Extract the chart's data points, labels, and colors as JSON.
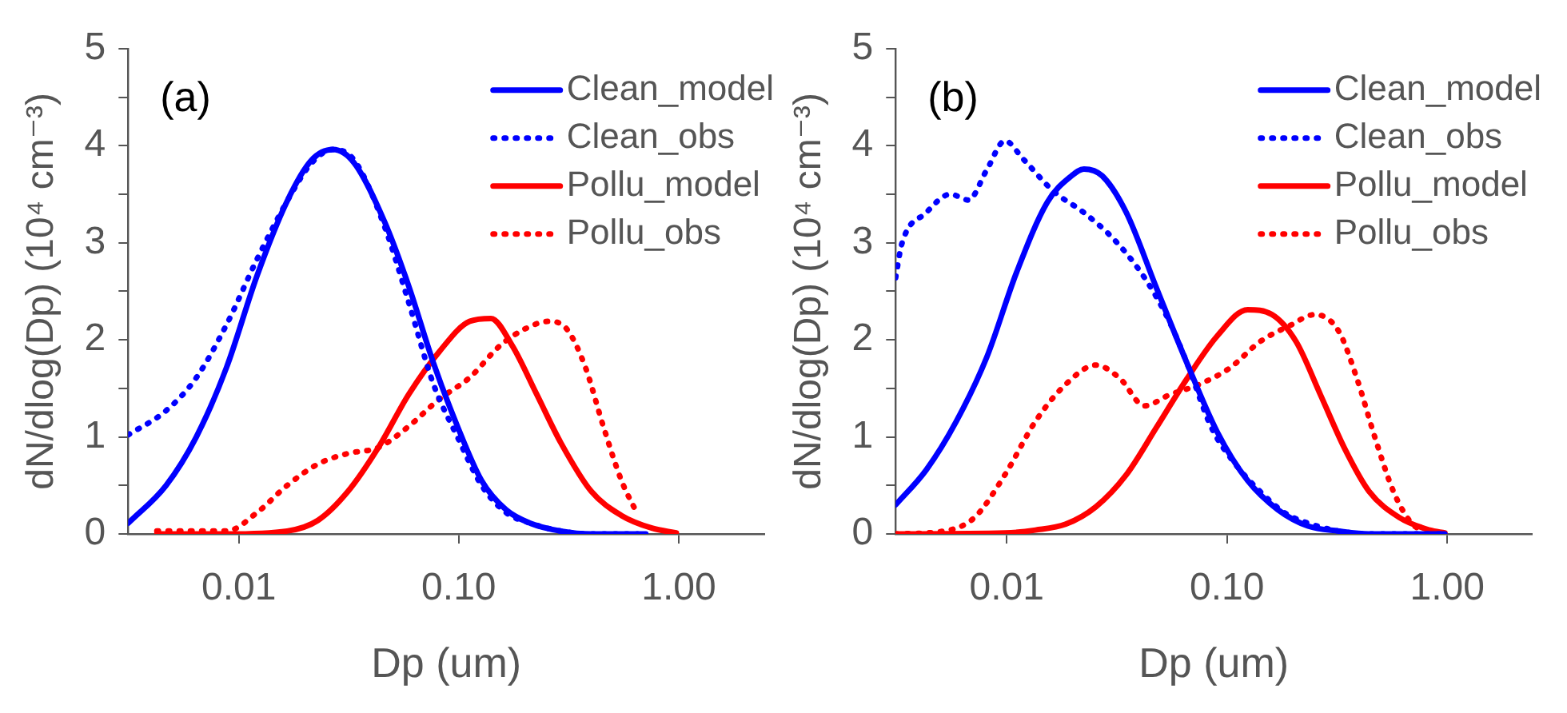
{
  "chart_data": [
    {
      "type": "line",
      "xlabel": "Dp (um)",
      "ylabel": "dN/dlog(Dp) (10⁴ cm⁻³)",
      "annotations": [
        "(a)"
      ],
      "log": "x",
      "grid": false,
      "legend": "top right",
      "marker": "none",
      "xlim": [
        0.00314,
        2.45
      ],
      "xticks": [
        {
          "value": 0.01,
          "label": "0.01"
        },
        {
          "value": 0.1,
          "label": "0.10"
        },
        {
          "value": 1,
          "label": "1.00"
        }
      ],
      "ylim": [
        0,
        5
      ],
      "yticks": [
        0,
        {
          "value": 0.5,
          "label": null
        },
        1,
        {
          "value": 1.5,
          "label": null
        },
        2,
        {
          "value": 2.5,
          "label": null
        },
        3,
        {
          "value": 3.5,
          "label": null
        },
        4,
        {
          "value": 4.5,
          "label": null
        },
        5
      ],
      "series": [
        {
          "name": "Clean_model",
          "color": "#0000ff",
          "line_style": "solid",
          "x": [
            0.00314,
            0.00467,
            0.00641,
            0.00881,
            0.0121,
            0.0166,
            0.0214,
            0.0268,
            0.0335,
            0.0461,
            0.0593,
            0.0765,
            0.0986,
            0.127,
            0.164,
            0.212,
            0.291,
            0.4,
            0.709
          ],
          "values": [
            0.11,
            0.5,
            1.0,
            1.72,
            2.66,
            3.43,
            3.85,
            3.96,
            3.82,
            3.21,
            2.55,
            1.77,
            1.11,
            0.55,
            0.25,
            0.11,
            0.03,
            0,
            0
          ]
        },
        {
          "name": "Clean_obs",
          "color": "#0000ff",
          "line_style": "dotted",
          "x": [
            0.00314,
            0.00467,
            0.00641,
            0.00881,
            0.0121,
            0.0166,
            0.0214,
            0.0268,
            0.0335,
            0.0461,
            0.0593,
            0.0765,
            0.0986,
            0.127,
            0.164,
            0.212,
            0.291,
            0.4,
            0.65
          ],
          "values": [
            1.02,
            1.27,
            1.61,
            2.16,
            2.83,
            3.43,
            3.82,
            3.96,
            3.85,
            3.16,
            2.38,
            1.55,
            1.0,
            0.5,
            0.22,
            0.11,
            0.03,
            0,
            0
          ]
        },
        {
          "name": "Pollu_model",
          "color": "#ff0000",
          "line_style": "solid",
          "x": [
            0.00424,
            0.00881,
            0.0166,
            0.0229,
            0.0314,
            0.0431,
            0.0593,
            0.0817,
            0.112,
            0.14,
            0.175,
            0.226,
            0.291,
            0.4,
            0.549,
            0.755,
            0.975
          ],
          "values": [
            0,
            0,
            0.03,
            0.14,
            0.44,
            0.89,
            1.44,
            1.88,
            2.19,
            2.22,
            1.94,
            1.44,
            0.94,
            0.44,
            0.19,
            0.06,
            0.01
          ]
        },
        {
          "name": "Pollu_obs",
          "color": "#ff0000",
          "line_style": "dotted",
          "x": [
            0.00424,
            0.00881,
            0.0121,
            0.0166,
            0.0229,
            0.0314,
            0.0431,
            0.0593,
            0.0817,
            0.112,
            0.154,
            0.199,
            0.256,
            0.31,
            0.376,
            0.454,
            0.549,
            0.644
          ],
          "values": [
            0.03,
            0.03,
            0.22,
            0.5,
            0.72,
            0.83,
            0.89,
            1.11,
            1.39,
            1.61,
            1.94,
            2.11,
            2.19,
            2.11,
            1.72,
            1.11,
            0.55,
            0.22
          ]
        }
      ]
    },
    {
      "type": "line",
      "xlabel": "Dp (um)",
      "ylabel": "dN/dlog(Dp) (10⁴ cm⁻³)",
      "annotations": [
        "(b)"
      ],
      "log": "x",
      "grid": false,
      "legend": "top right",
      "marker": "none",
      "xlim": [
        0.00313,
        2.42
      ],
      "xticks": [
        {
          "value": 0.01,
          "label": "0.01"
        },
        {
          "value": 0.1,
          "label": "0.10"
        },
        {
          "value": 1,
          "label": "1.00"
        }
      ],
      "ylim": [
        0,
        5
      ],
      "yticks": [
        0,
        {
          "value": 0.5,
          "label": null
        },
        1,
        {
          "value": 1.5,
          "label": null
        },
        2,
        {
          "value": 2.5,
          "label": null
        },
        3,
        {
          "value": 3.5,
          "label": null
        },
        4,
        {
          "value": 4.5,
          "label": null
        },
        5
      ],
      "series": [
        {
          "name": "Clean_model",
          "color": "#0000ff",
          "line_style": "solid",
          "x": [
            0.00313,
            0.00431,
            0.0059,
            0.00811,
            0.0111,
            0.0153,
            0.0197,
            0.0224,
            0.0271,
            0.0349,
            0.0479,
            0.0658,
            0.0903,
            0.124,
            0.17,
            0.234,
            0.321,
            0.441,
            0.975
          ],
          "values": [
            0.3,
            0.66,
            1.16,
            1.82,
            2.7,
            3.42,
            3.69,
            3.76,
            3.69,
            3.31,
            2.53,
            1.76,
            1.05,
            0.55,
            0.25,
            0.08,
            0.03,
            0,
            0
          ]
        },
        {
          "name": "Clean_obs",
          "color": "#0000ff",
          "line_style": "dotted",
          "x": [
            0.00313,
            0.00333,
            0.00431,
            0.00555,
            0.0067,
            0.00811,
            0.00981,
            0.0119,
            0.0163,
            0.0224,
            0.0308,
            0.0422,
            0.0544,
            0.0658,
            0.0848,
            0.109,
            0.141,
            0.182,
            0.234,
            0.321,
            0.441,
            0.944
          ],
          "values": [
            2.64,
            2.98,
            3.31,
            3.5,
            3.44,
            3.75,
            4.05,
            3.86,
            3.53,
            3.31,
            3.03,
            2.64,
            2.2,
            1.76,
            1.1,
            0.72,
            0.44,
            0.22,
            0.11,
            0.03,
            0,
            0
          ]
        },
        {
          "name": "Pollu_model",
          "color": "#ff0000",
          "line_style": "solid",
          "x": [
            0.00313,
            0.00981,
            0.0135,
            0.0185,
            0.0254,
            0.0349,
            0.0479,
            0.0658,
            0.0903,
            0.124,
            0.16,
            0.206,
            0.266,
            0.342,
            0.441,
            0.605,
            0.832,
            0.975
          ],
          "values": [
            0,
            0.01,
            0.04,
            0.1,
            0.28,
            0.61,
            1.1,
            1.6,
            2.04,
            2.31,
            2.26,
            1.98,
            1.43,
            0.88,
            0.44,
            0.17,
            0.04,
            0.01
          ]
        },
        {
          "name": "Pollu_obs",
          "color": "#ff0000",
          "line_style": "dotted",
          "x": [
            0.00313,
            0.0052,
            0.00714,
            0.00981,
            0.0135,
            0.0185,
            0.0254,
            0.0327,
            0.0422,
            0.0544,
            0.0746,
            0.103,
            0.141,
            0.194,
            0.25,
            0.321,
            0.389,
            0.47,
            0.569,
            0.688,
            0.782
          ],
          "values": [
            0,
            0.03,
            0.17,
            0.61,
            1.16,
            1.54,
            1.74,
            1.6,
            1.32,
            1.43,
            1.54,
            1.71,
            1.98,
            2.15,
            2.26,
            2.09,
            1.6,
            0.99,
            0.44,
            0.11,
            0.03
          ]
        }
      ]
    }
  ]
}
